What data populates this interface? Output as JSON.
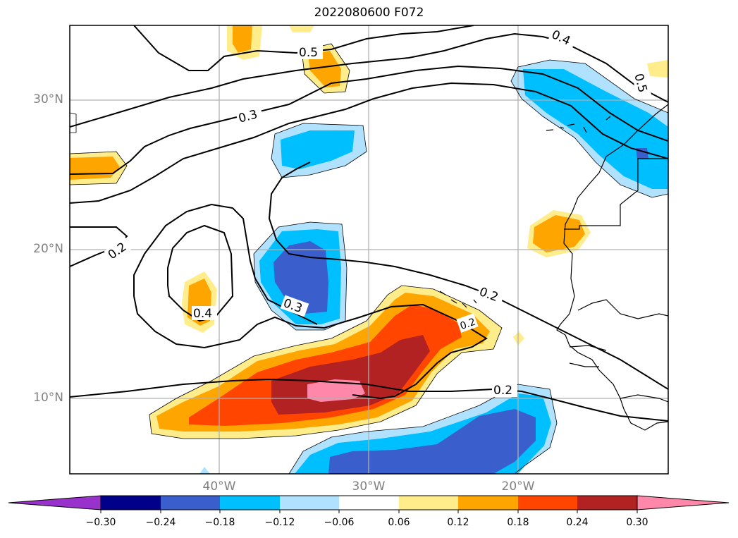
{
  "title": "2022080600 F072",
  "lat_labels": [
    "30°N",
    "20°N",
    "10°N"
  ],
  "lon_labels": [
    "40°W",
    "30°W",
    "20°W"
  ],
  "contour_labels": [
    "0.5",
    "0.4",
    "0.5",
    "0.3",
    "0.2",
    "0.4",
    "0.3",
    "0.2",
    "0.2",
    "0.2"
  ],
  "colorbar": {
    "ticks": [
      "−0.30",
      "−0.24",
      "−0.18",
      "−0.12",
      "−0.06",
      "0.06",
      "0.12",
      "0.18",
      "0.24",
      "0.30"
    ],
    "colors": [
      "#9932cc",
      "#00008b",
      "#3a5fcd",
      "#00bfff",
      "#b0e2ff",
      "#ffffff",
      "#ffec8b",
      "#ffa500",
      "#ff4500",
      "#b22222",
      "#ff88aa"
    ]
  },
  "colors": {
    "grid": "#b0b0b0",
    "contour": "#000000",
    "coast": "#000000"
  }
}
